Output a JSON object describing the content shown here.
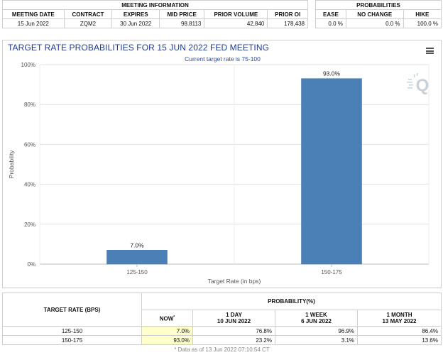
{
  "meeting_info": {
    "header": "MEETING INFORMATION",
    "columns": [
      "MEETING DATE",
      "CONTRACT",
      "EXPIRES",
      "MID PRICE",
      "PRIOR VOLUME",
      "PRIOR OI"
    ],
    "row": [
      "15 Jun 2022",
      "ZQM2",
      "30 Jun 2022",
      "98.8113",
      "42,840",
      "178,438"
    ]
  },
  "probabilities": {
    "header": "PROBABILITIES",
    "columns": [
      "EASE",
      "NO CHANGE",
      "HIKE"
    ],
    "row": [
      "0.0 %",
      "0.0 %",
      "100.0 %"
    ]
  },
  "chart_panel": {
    "title": "TARGET RATE PROBABILITIES FOR 15 JUN 2022 FED MEETING",
    "subtitle": "Current target rate is 75-100",
    "menu_icon": "hamburger-menu-icon",
    "watermark_icon": "q-logo-icon"
  },
  "chart_data": {
    "type": "bar",
    "categories": [
      "125-150",
      "150-175"
    ],
    "values": [
      7.0,
      93.0
    ],
    "data_labels": [
      "7.0%",
      "93.0%"
    ],
    "xlabel": "Target Rate (in bps)",
    "ylabel": "Probability",
    "ylim": [
      0,
      100
    ],
    "yticks": [
      0,
      20,
      40,
      60,
      80,
      100
    ],
    "ytick_labels": [
      "0%",
      "20%",
      "40%",
      "60%",
      "80%",
      "100%"
    ],
    "grid": true,
    "bar_color": "#4a80b6"
  },
  "rates_table": {
    "target_header": "TARGET RATE (BPS)",
    "prob_header": "PROBABILITY(%)",
    "columns": [
      {
        "line1": "NOW",
        "marker": "*",
        "line2": ""
      },
      {
        "line1": "1 DAY",
        "line2": "10 JUN 2022"
      },
      {
        "line1": "1 WEEK",
        "line2": "6 JUN 2022"
      },
      {
        "line1": "1 MONTH",
        "line2": "13 MAY 2022"
      }
    ],
    "rows": [
      {
        "rate": "125-150",
        "values": [
          "7.0%",
          "76.8%",
          "96.9%",
          "86.4%"
        ]
      },
      {
        "rate": "150-175",
        "values": [
          "93.0%",
          "23.2%",
          "3.1%",
          "13.6%"
        ]
      }
    ],
    "footnote": "* Data as of 13 Jun 2022 07:10:54 CT"
  }
}
